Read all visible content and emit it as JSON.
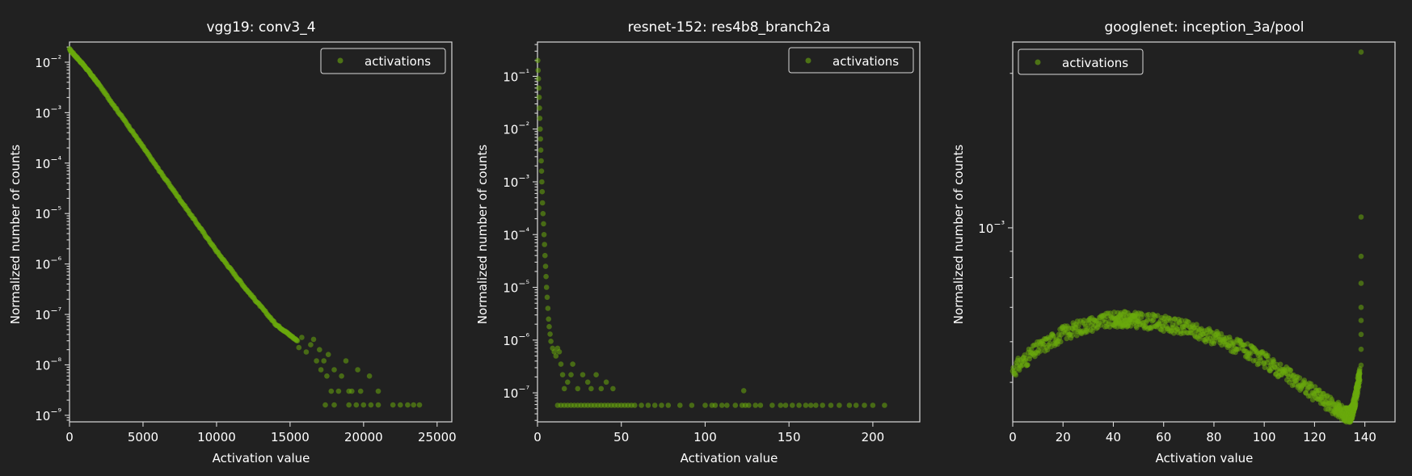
{
  "style": {
    "background": "#212121",
    "marker_color": "#6aaa0d",
    "axis_color": "#d9d9d9",
    "text_color": "#ffffff"
  },
  "chart_data": [
    {
      "type": "scatter",
      "title": "vgg19: conv3_4",
      "xlabel": "Activation value",
      "ylabel": "Normalized number of counts",
      "yscale": "log",
      "xlim": [
        0,
        26000
      ],
      "ylim_exp": [
        -9.13,
        -1.6
      ],
      "xticks": [
        0,
        5000,
        10000,
        15000,
        20000,
        25000
      ],
      "yticks_exp": [
        -2,
        -3,
        -4,
        -5,
        -6,
        -7,
        -8,
        -9
      ],
      "legend": {
        "label": "activations",
        "loc": "upper right"
      },
      "series": [
        {
          "label": "activations",
          "kind": "curve",
          "x": [
            0,
            1000,
            2000,
            4000,
            6000,
            8000,
            10000,
            12000,
            14000,
            15500
          ],
          "y": [
            0.018,
            0.0085,
            0.0036,
            0.00055,
            7.9e-05,
            1.2e-05,
            1.8e-06,
            3.2e-07,
            6.5e-08,
            3e-08
          ]
        },
        {
          "label": "activations",
          "kind": "tail",
          "points": [
            [
              15600,
              2.2e-08
            ],
            [
              15800,
              3.5e-08
            ],
            [
              16100,
              1.8e-08
            ],
            [
              16400,
              2.5e-08
            ],
            [
              16600,
              3.2e-08
            ],
            [
              16800,
              1.2e-08
            ],
            [
              17000,
              2e-08
            ],
            [
              17100,
              8e-09
            ],
            [
              17300,
              1.2e-08
            ],
            [
              17500,
              6e-09
            ],
            [
              17600,
              1.6e-08
            ],
            [
              17800,
              3e-09
            ],
            [
              18000,
              8e-09
            ],
            [
              18300,
              3e-09
            ],
            [
              18500,
              6e-09
            ],
            [
              18800,
              1.2e-08
            ],
            [
              19000,
              3e-09
            ],
            [
              19200,
              3e-09
            ],
            [
              19600,
              8e-09
            ],
            [
              19800,
              3e-09
            ],
            [
              20400,
              6e-09
            ],
            [
              21000,
              3e-09
            ],
            [
              18000,
              1.6e-09
            ],
            [
              19000,
              1.6e-09
            ],
            [
              20000,
              1.6e-09
            ],
            [
              21000,
              1.6e-09
            ],
            [
              17400,
              1.6e-09
            ],
            [
              19500,
              1.6e-09
            ],
            [
              20500,
              1.6e-09
            ],
            [
              22000,
              1.6e-09
            ],
            [
              22500,
              1.6e-09
            ],
            [
              23000,
              1.6e-09
            ],
            [
              23400,
              1.6e-09
            ],
            [
              23800,
              1.6e-09
            ]
          ]
        }
      ]
    },
    {
      "type": "scatter",
      "title": "resnet-152: res4b8_branch2a",
      "xlabel": "Activation value",
      "ylabel": "Normalized number of counts",
      "yscale": "log",
      "xlim": [
        0,
        228
      ],
      "ylim_exp": [
        -7.55,
        -0.35
      ],
      "xticks": [
        0,
        50,
        100,
        150,
        200
      ],
      "yticks_exp": [
        -1,
        -2,
        -3,
        -4,
        -5,
        -6,
        -7
      ],
      "legend": {
        "label": "activations",
        "loc": "upper right"
      },
      "series": [
        {
          "label": "activations",
          "kind": "points",
          "points": [
            [
              0.2,
              0.2
            ],
            [
              0.4,
              0.13
            ],
            [
              0.6,
              0.09
            ],
            [
              0.8,
              0.06
            ],
            [
              1.0,
              0.04
            ],
            [
              1.2,
              0.025
            ],
            [
              1.4,
              0.016
            ],
            [
              1.6,
              0.01
            ],
            [
              1.8,
              0.0065
            ],
            [
              2.0,
              0.004
            ],
            [
              2.2,
              0.0025
            ],
            [
              2.4,
              0.0016
            ],
            [
              2.6,
              0.001
            ],
            [
              2.8,
              0.00065
            ],
            [
              3.0,
              0.0004
            ],
            [
              3.3,
              0.00025
            ],
            [
              3.6,
              0.00016
            ],
            [
              3.9,
              0.0001
            ],
            [
              4.2,
              6.5e-05
            ],
            [
              4.5,
              4e-05
            ],
            [
              4.8,
              2.5e-05
            ],
            [
              5.1,
              1.6e-05
            ],
            [
              5.4,
              1e-05
            ],
            [
              5.8,
              6.5e-06
            ],
            [
              6.2,
              4e-06
            ],
            [
              6.6,
              2.5e-06
            ],
            [
              7.0,
              1.8e-06
            ],
            [
              7.5,
              1.3e-06
            ],
            [
              8.0,
              9.5e-07
            ],
            [
              9.0,
              7e-07
            ],
            [
              10.0,
              6e-07
            ],
            [
              11.0,
              5e-07
            ],
            [
              12.0,
              7e-07
            ],
            [
              13.0,
              6e-07
            ],
            [
              14,
              3.5e-07
            ],
            [
              15,
              2.2e-07
            ],
            [
              16,
              1.2e-07
            ],
            [
              18,
              1.6e-07
            ],
            [
              20,
              2.2e-07
            ],
            [
              21,
              3.5e-07
            ],
            [
              24,
              1.2e-07
            ],
            [
              27,
              2.2e-07
            ],
            [
              30,
              1.6e-07
            ],
            [
              32,
              1.2e-07
            ],
            [
              35,
              2.2e-07
            ],
            [
              38,
              1.2e-07
            ],
            [
              41,
              1.6e-07
            ],
            [
              45,
              1.2e-07
            ],
            [
              123,
              1.1e-07
            ]
          ]
        },
        {
          "label": "activations",
          "kind": "floor",
          "y": 5.8e-08,
          "x": [
            12,
            14,
            16,
            18,
            20,
            22,
            24,
            26,
            28,
            30,
            32,
            34,
            36,
            38,
            40,
            42,
            44,
            46,
            48,
            50,
            52,
            54,
            56,
            58,
            62,
            66,
            70,
            74,
            78,
            85,
            92,
            100,
            104,
            106,
            110,
            113,
            118,
            122,
            124,
            126,
            130,
            133,
            140,
            145,
            148,
            152,
            156,
            160,
            163,
            166,
            170,
            175,
            180,
            186,
            190,
            195,
            200,
            207
          ]
        }
      ]
    },
    {
      "type": "scatter",
      "title": "googlenet: inception_3a/pool",
      "xlabel": "Activation value",
      "ylabel": "Normalized number of counts",
      "yscale": "log",
      "xlim": [
        0,
        152
      ],
      "ylim_exp": [
        -3.378,
        -2.638
      ],
      "xticks": [
        0,
        20,
        40,
        60,
        80,
        100,
        120,
        140
      ],
      "yticks_exp": [
        -3
      ],
      "legend": {
        "label": "activations",
        "loc": "upper left"
      },
      "series": [
        {
          "label": "activations",
          "kind": "curve",
          "x": [
            0,
            10,
            20,
            30,
            40,
            45,
            50,
            60,
            70,
            80,
            90,
            100,
            110,
            120,
            128,
            132,
            134,
            135,
            136,
            137,
            138
          ],
          "y": [
            0.000528,
            0.000581,
            0.000623,
            0.000649,
            0.000662,
            0.000664,
            0.000661,
            0.000651,
            0.000635,
            0.000613,
            0.000585,
            0.000552,
            0.000513,
            0.000476,
            0.000446,
            0.000434,
            0.000431,
            0.00044,
            0.000458,
            0.000488,
            0.00052
          ]
        },
        {
          "label": "activations",
          "kind": "points",
          "points": [
            [
              138.5,
              0.00054
            ],
            [
              138.5,
              0.00058
            ],
            [
              138.5,
              0.00062
            ],
            [
              138.5,
              0.00066
            ],
            [
              138.5,
              0.0007
            ],
            [
              138.5,
              0.00078
            ],
            [
              138.5,
              0.00088
            ],
            [
              138.5,
              0.00105
            ],
            [
              138.5,
              0.0022
            ]
          ]
        }
      ]
    }
  ]
}
